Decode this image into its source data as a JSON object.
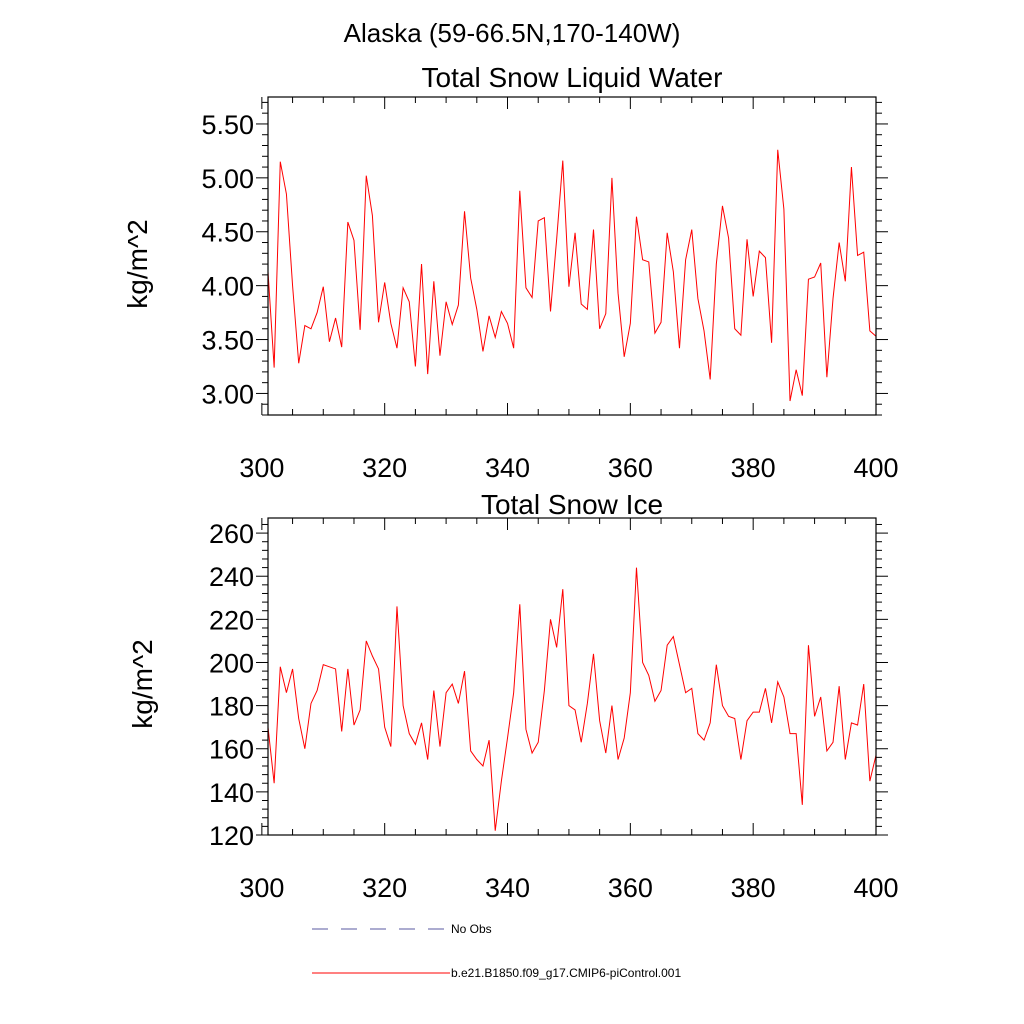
{
  "figure": {
    "suptitle": "Alaska (59-66.5N,170-140W)"
  },
  "chart_data": [
    {
      "type": "line",
      "title": "Total Snow Liquid Water",
      "xlabel": "",
      "ylabel": "kg/m^2",
      "xlim": [
        301,
        400
      ],
      "ylim": [
        2.8,
        5.75
      ],
      "xticks": [
        300,
        320,
        340,
        360,
        380,
        400
      ],
      "yticks": [
        3.0,
        3.5,
        4.0,
        4.5,
        5.0,
        5.5
      ],
      "ytick_labels": [
        "3.00",
        "3.50",
        "4.00",
        "4.50",
        "5.00",
        "5.50"
      ],
      "x_start": 301,
      "series": [
        {
          "name": "b.e21.B1850.f09_g17.CMIP6-piControl.001",
          "color": "#ff0000",
          "values": [
            4.13,
            3.24,
            5.15,
            4.85,
            4.0,
            3.28,
            3.63,
            3.6,
            3.75,
            3.99,
            3.48,
            3.7,
            3.43,
            4.59,
            4.42,
            3.59,
            5.02,
            4.65,
            3.66,
            4.03,
            3.65,
            3.42,
            3.98,
            3.85,
            3.25,
            4.2,
            3.18,
            4.04,
            3.35,
            3.85,
            3.64,
            3.82,
            4.69,
            4.07,
            3.78,
            3.39,
            3.72,
            3.52,
            3.76,
            3.65,
            3.42,
            4.88,
            3.98,
            3.89,
            4.6,
            4.63,
            3.76,
            4.43,
            5.16,
            3.99,
            4.49,
            3.83,
            3.78,
            4.52,
            3.6,
            3.74,
            5.0,
            3.93,
            3.34,
            3.65,
            4.64,
            4.24,
            4.22,
            3.56,
            3.66,
            4.49,
            4.13,
            3.42,
            4.24,
            4.52,
            3.88,
            3.58,
            3.13,
            4.2,
            4.74,
            4.44,
            3.6,
            3.54,
            4.43,
            3.9,
            4.32,
            4.26,
            3.47,
            5.26,
            4.71,
            2.93,
            3.22,
            2.98,
            4.06,
            4.08,
            4.21,
            3.15,
            3.88,
            4.4,
            4.04,
            5.1,
            4.28,
            4.31,
            3.58,
            3.53
          ]
        }
      ]
    },
    {
      "type": "line",
      "title": "Total Snow Ice",
      "xlabel": "",
      "ylabel": "kg/m^2",
      "xlim": [
        301,
        400
      ],
      "ylim": [
        120,
        267
      ],
      "xticks": [
        300,
        320,
        340,
        360,
        380,
        400
      ],
      "yticks": [
        120,
        140,
        160,
        180,
        200,
        220,
        240,
        260
      ],
      "ytick_labels": [
        "120",
        "140",
        "160",
        "180",
        "200",
        "220",
        "240",
        "260"
      ],
      "x_start": 301,
      "series": [
        {
          "name": "b.e21.B1850.f09_g17.CMIP6-piControl.001",
          "color": "#ff0000",
          "values": [
            170,
            144,
            198,
            186,
            197,
            174,
            160,
            181,
            187,
            199,
            198,
            197,
            168,
            197,
            171,
            178,
            210,
            203,
            197,
            170,
            161,
            226,
            180,
            167,
            162,
            172,
            155,
            187,
            161,
            186,
            190,
            181,
            196,
            159,
            155,
            152,
            164,
            122,
            145,
            165,
            186,
            227,
            169,
            158,
            163,
            187,
            220,
            207,
            234,
            180,
            178,
            163,
            181,
            204,
            173,
            158,
            180,
            155,
            165,
            186,
            244,
            200,
            194,
            182,
            187,
            208,
            212,
            199,
            186,
            188,
            167,
            164,
            172,
            199,
            180,
            175,
            174,
            155,
            173,
            177,
            177,
            188,
            172,
            191,
            184,
            167,
            167,
            134,
            208,
            175,
            184,
            159,
            163,
            189,
            155,
            172,
            171,
            190,
            145,
            157
          ]
        }
      ]
    }
  ],
  "legend": {
    "items": [
      {
        "label": "No Obs",
        "color": "#5a5aa0",
        "style": "dashed"
      },
      {
        "label": "b.e21.B1850.f09_g17.CMIP6-piControl.001",
        "color": "#ff0000",
        "style": "solid"
      }
    ]
  }
}
